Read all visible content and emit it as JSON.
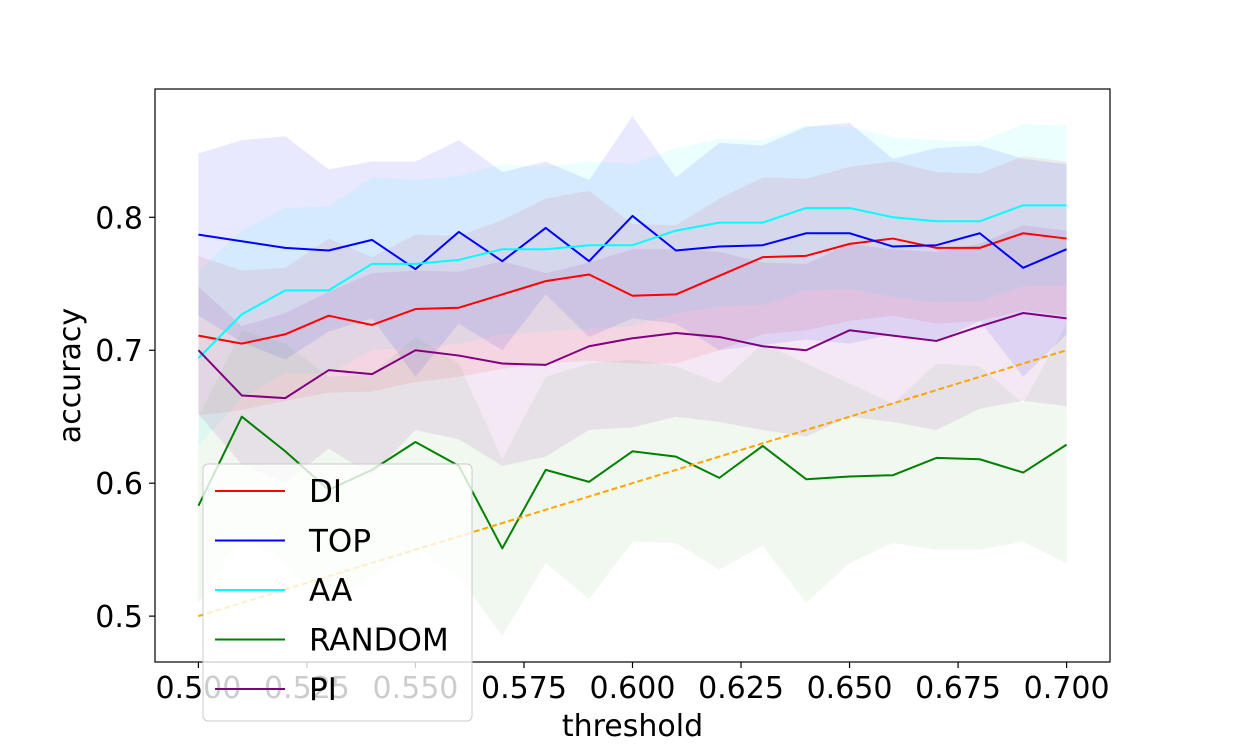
{
  "chart_data": {
    "type": "line",
    "xlabel": "threshold",
    "ylabel": "accuracy",
    "xlim": [
      0.49,
      0.71
    ],
    "ylim": [
      0.4655,
      0.8965
    ],
    "xticks": [
      "0.500",
      "0.525",
      "0.550",
      "0.575",
      "0.600",
      "0.625",
      "0.650",
      "0.675",
      "0.700"
    ],
    "yticks": [
      "0.5",
      "0.6",
      "0.7",
      "0.8"
    ],
    "grid": false,
    "legend_position": "lower-left",
    "x": [
      0.5,
      0.51,
      0.52,
      0.53,
      0.54,
      0.55,
      0.56,
      0.57,
      0.58,
      0.59,
      0.6,
      0.61,
      0.62,
      0.63,
      0.64,
      0.65,
      0.66,
      0.67,
      0.68,
      0.69,
      0.7
    ],
    "series": [
      {
        "name": "DI",
        "color": "#ff0000",
        "values": [
          0.711,
          0.705,
          0.712,
          0.726,
          0.719,
          0.731,
          0.732,
          0.742,
          0.752,
          0.757,
          0.741,
          0.742,
          0.756,
          0.77,
          0.771,
          0.78,
          0.784,
          0.777,
          0.777,
          0.788,
          0.784
        ],
        "band": {
          "opacity": 0.08,
          "lower": [
            0.651,
            0.655,
            0.662,
            0.668,
            0.669,
            0.676,
            0.68,
            0.686,
            0.69,
            0.692,
            0.69,
            0.69,
            0.7,
            0.712,
            0.715,
            0.722,
            0.726,
            0.72,
            0.722,
            0.73,
            0.726
          ],
          "upper": [
            0.771,
            0.76,
            0.762,
            0.784,
            0.77,
            0.787,
            0.786,
            0.798,
            0.814,
            0.82,
            0.795,
            0.794,
            0.814,
            0.83,
            0.829,
            0.838,
            0.842,
            0.834,
            0.833,
            0.846,
            0.842
          ]
        }
      },
      {
        "name": "TOP",
        "color": "#0000ff",
        "values": [
          0.787,
          0.782,
          0.777,
          0.775,
          0.783,
          0.761,
          0.789,
          0.767,
          0.792,
          0.767,
          0.801,
          0.775,
          0.778,
          0.779,
          0.788,
          0.788,
          0.778,
          0.779,
          0.788,
          0.762,
          0.776
        ],
        "band": {
          "opacity": 0.09,
          "lower": [
            0.726,
            0.706,
            0.693,
            0.714,
            0.724,
            0.68,
            0.72,
            0.7,
            0.742,
            0.71,
            0.724,
            0.72,
            0.7,
            0.704,
            0.708,
            0.705,
            0.712,
            0.706,
            0.722,
            0.68,
            0.712
          ],
          "upper": [
            0.848,
            0.858,
            0.861,
            0.836,
            0.842,
            0.842,
            0.858,
            0.834,
            0.842,
            0.828,
            0.876,
            0.83,
            0.856,
            0.854,
            0.868,
            0.871,
            0.844,
            0.852,
            0.854,
            0.844,
            0.84
          ]
        }
      },
      {
        "name": "AA",
        "color": "#00ffff",
        "values": [
          0.694,
          0.727,
          0.745,
          0.745,
          0.765,
          0.765,
          0.768,
          0.776,
          0.776,
          0.779,
          0.779,
          0.79,
          0.796,
          0.796,
          0.807,
          0.807,
          0.8,
          0.797,
          0.797,
          0.809,
          0.809
        ],
        "band": {
          "opacity": 0.08,
          "lower": [
            0.628,
            0.664,
            0.683,
            0.682,
            0.7,
            0.702,
            0.705,
            0.712,
            0.714,
            0.716,
            0.718,
            0.728,
            0.733,
            0.734,
            0.745,
            0.746,
            0.74,
            0.736,
            0.737,
            0.748,
            0.749
          ],
          "upper": [
            0.76,
            0.79,
            0.807,
            0.808,
            0.83,
            0.828,
            0.831,
            0.84,
            0.838,
            0.842,
            0.84,
            0.852,
            0.859,
            0.858,
            0.869,
            0.868,
            0.86,
            0.858,
            0.857,
            0.87,
            0.869
          ]
        }
      },
      {
        "name": "RANDOM",
        "color": "#008000",
        "values": [
          0.583,
          0.65,
          0.624,
          0.595,
          0.61,
          0.631,
          0.613,
          0.551,
          0.61,
          0.601,
          0.624,
          0.62,
          0.604,
          0.628,
          0.603,
          0.605,
          0.606,
          0.619,
          0.618,
          0.608,
          0.629
        ],
        "band": {
          "opacity": 0.06,
          "lower": [
            0.51,
            0.56,
            0.54,
            0.505,
            0.53,
            0.55,
            0.53,
            0.485,
            0.54,
            0.513,
            0.556,
            0.555,
            0.535,
            0.553,
            0.51,
            0.54,
            0.555,
            0.55,
            0.55,
            0.556,
            0.54
          ],
          "upper": [
            0.65,
            0.715,
            0.705,
            0.68,
            0.682,
            0.71,
            0.69,
            0.618,
            0.68,
            0.69,
            0.693,
            0.688,
            0.675,
            0.705,
            0.69,
            0.675,
            0.66,
            0.69,
            0.688,
            0.66,
            0.72
          ]
        }
      },
      {
        "name": "PI",
        "color": "#800080",
        "values": [
          0.7,
          0.666,
          0.664,
          0.685,
          0.682,
          0.7,
          0.696,
          0.69,
          0.689,
          0.703,
          0.709,
          0.713,
          0.71,
          0.703,
          0.7,
          0.715,
          0.711,
          0.707,
          0.718,
          0.728,
          0.724
        ],
        "band": {
          "opacity": 0.09,
          "lower": [
            0.652,
            0.614,
            0.6,
            0.626,
            0.606,
            0.64,
            0.633,
            0.613,
            0.62,
            0.64,
            0.642,
            0.65,
            0.646,
            0.64,
            0.635,
            0.65,
            0.646,
            0.64,
            0.656,
            0.662,
            0.658
          ],
          "upper": [
            0.748,
            0.718,
            0.728,
            0.744,
            0.758,
            0.76,
            0.759,
            0.767,
            0.758,
            0.766,
            0.776,
            0.776,
            0.774,
            0.766,
            0.765,
            0.78,
            0.776,
            0.774,
            0.78,
            0.794,
            0.79
          ]
        }
      }
    ],
    "reference_line": {
      "color": "#ffa500",
      "style": "dashed",
      "x": [
        0.5,
        0.7
      ],
      "values": [
        0.5,
        0.7
      ]
    }
  }
}
